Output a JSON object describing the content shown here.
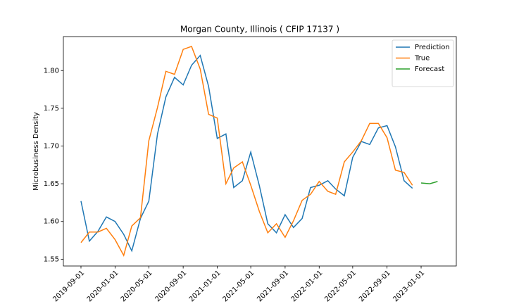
{
  "chart_data": {
    "type": "line",
    "title": "Morgan County, Illinois ( CFIP 17137 )",
    "y_label": "Microbusiness Density",
    "x": [
      "2019-09-01",
      "2019-10-01",
      "2019-11-01",
      "2019-12-01",
      "2020-01-01",
      "2020-02-01",
      "2020-03-01",
      "2020-04-01",
      "2020-05-01",
      "2020-06-01",
      "2020-07-01",
      "2020-08-01",
      "2020-09-01",
      "2020-10-01",
      "2020-11-01",
      "2020-12-01",
      "2021-01-01",
      "2021-02-01",
      "2021-03-01",
      "2021-04-01",
      "2021-05-01",
      "2021-06-01",
      "2021-07-01",
      "2021-08-01",
      "2021-09-01",
      "2021-10-01",
      "2021-11-01",
      "2021-12-01",
      "2022-01-01",
      "2022-02-01",
      "2022-03-01",
      "2022-04-01",
      "2022-05-01",
      "2022-06-01",
      "2022-07-01",
      "2022-08-01",
      "2022-09-01",
      "2022-10-01",
      "2022-11-01",
      "2022-12-01",
      "2023-01-01",
      "2023-02-01",
      "2023-03-01"
    ],
    "series": [
      {
        "name": "Prediction",
        "color": "#1f77b4",
        "values": [
          1.627,
          1.574,
          1.587,
          1.606,
          1.6,
          1.583,
          1.561,
          1.604,
          1.627,
          1.716,
          1.765,
          1.791,
          1.781,
          1.807,
          1.82,
          1.779,
          1.71,
          1.716,
          1.645,
          1.654,
          1.692,
          1.647,
          1.597,
          1.585,
          1.609,
          1.592,
          1.604,
          1.645,
          1.648,
          1.654,
          1.643,
          1.634,
          1.685,
          1.706,
          1.702,
          1.724,
          1.727,
          1.699,
          1.654,
          1.644,
          null,
          null,
          null
        ]
      },
      {
        "name": "True",
        "color": "#ff7f0e",
        "values": [
          1.572,
          1.586,
          1.586,
          1.591,
          1.576,
          1.555,
          1.594,
          1.605,
          1.707,
          1.751,
          1.799,
          1.795,
          1.828,
          1.832,
          1.802,
          1.742,
          1.737,
          1.65,
          1.671,
          1.679,
          1.648,
          1.613,
          1.585,
          1.597,
          1.579,
          1.601,
          1.628,
          1.636,
          1.653,
          1.64,
          1.636,
          1.679,
          1.692,
          1.707,
          1.73,
          1.73,
          1.711,
          1.668,
          1.665,
          1.648,
          null,
          null,
          null
        ]
      },
      {
        "name": "Forecast",
        "color": "#2ca02c",
        "values": [
          null,
          null,
          null,
          null,
          null,
          null,
          null,
          null,
          null,
          null,
          null,
          null,
          null,
          null,
          null,
          null,
          null,
          null,
          null,
          null,
          null,
          null,
          null,
          null,
          null,
          null,
          null,
          null,
          null,
          null,
          null,
          null,
          null,
          null,
          null,
          null,
          null,
          null,
          null,
          null,
          1.651,
          1.65,
          1.653
        ]
      }
    ],
    "xlim": [
      "2019-06-30",
      "2023-05-07"
    ],
    "xticks": [
      "2019-09-01",
      "2020-01-01",
      "2020-05-01",
      "2020-09-01",
      "2021-01-01",
      "2021-05-01",
      "2021-09-01",
      "2022-01-01",
      "2022-05-01",
      "2022-09-01",
      "2023-01-01"
    ],
    "ylim": [
      1.541,
      1.845
    ],
    "yticks": [
      1.55,
      {
        "value": 1.6,
        "label": "1.60"
      },
      1.65,
      {
        "value": 1.7,
        "label": "1.70"
      },
      1.75,
      {
        "value": 1.8,
        "label": "1.80"
      }
    ],
    "grid": false,
    "legend": "upper right"
  }
}
